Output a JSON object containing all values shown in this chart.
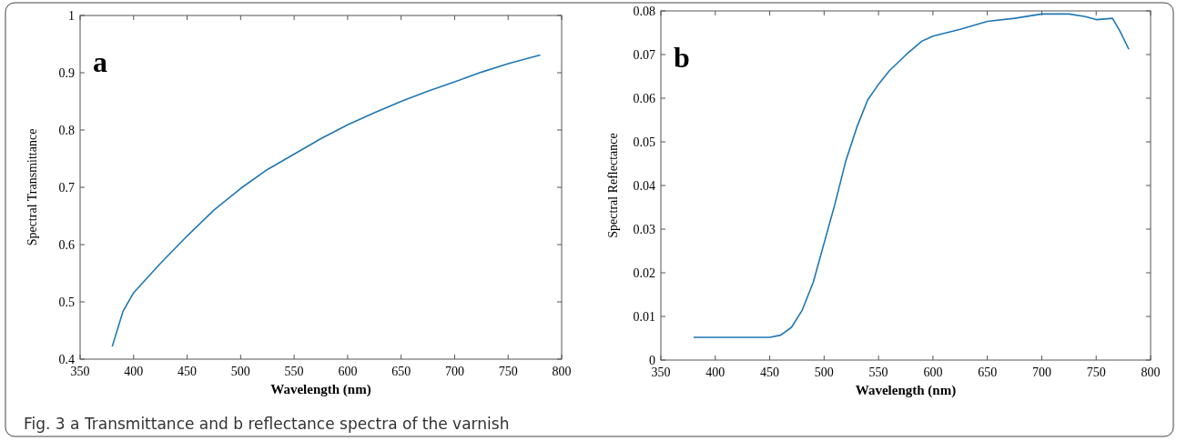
{
  "chart_data": [
    {
      "type": "line",
      "xlabel": "Wavelength (nm)",
      "ylabel": "Spectral Transmittance",
      "annotations": [
        "a",
        "Fig. 3 a Transmittance and b reflectance spectra of the varnish"
      ],
      "xlim": [
        350,
        800
      ],
      "xticks": [
        350,
        400,
        450,
        500,
        550,
        600,
        650,
        700,
        750,
        800
      ],
      "ylim": [
        0.4,
        1
      ],
      "yticks": [
        0.4,
        0.5,
        0.6,
        0.7,
        0.8,
        0.9,
        1
      ],
      "series": [
        {
          "color": "#1f77b4",
          "x": [
            380,
            390,
            400,
            425,
            450,
            475,
            500,
            525,
            550,
            575,
            600,
            625,
            650,
            675,
            700,
            725,
            750,
            780
          ],
          "values": [
            0.422,
            0.483,
            0.516,
            0.567,
            0.615,
            0.66,
            0.698,
            0.731,
            0.758,
            0.785,
            0.809,
            0.83,
            0.85,
            0.868,
            0.884,
            0.901,
            0.916,
            0.931
          ]
        }
      ]
    },
    {
      "type": "line",
      "xlabel": "Wavelength (nm)",
      "ylabel": "Spectral Reflectance",
      "annotations": [
        "b"
      ],
      "xlim": [
        350,
        800
      ],
      "xticks": [
        350,
        400,
        450,
        500,
        550,
        600,
        650,
        700,
        750,
        800
      ],
      "ylim": [
        0,
        0.08
      ],
      "yticks": [
        0,
        0.01,
        0.02,
        0.03,
        0.04,
        0.05,
        0.06,
        0.07,
        0.08
      ],
      "series": [
        {
          "color": "#1f77b4",
          "x": [
            380,
            450,
            460,
            470,
            480,
            490,
            500,
            510,
            520,
            530,
            540,
            550,
            560,
            575,
            590,
            600,
            625,
            650,
            675,
            700,
            725,
            740,
            750,
            765,
            772,
            780
          ],
          "values": [
            0.0052,
            0.0052,
            0.0057,
            0.0075,
            0.0115,
            0.0178,
            0.0268,
            0.0358,
            0.0457,
            0.0533,
            0.0596,
            0.0632,
            0.0663,
            0.0699,
            0.0731,
            0.0742,
            0.0758,
            0.0776,
            0.0783,
            0.0793,
            0.0793,
            0.0787,
            0.078,
            0.0783,
            0.0753,
            0.0712
          ]
        }
      ]
    }
  ]
}
